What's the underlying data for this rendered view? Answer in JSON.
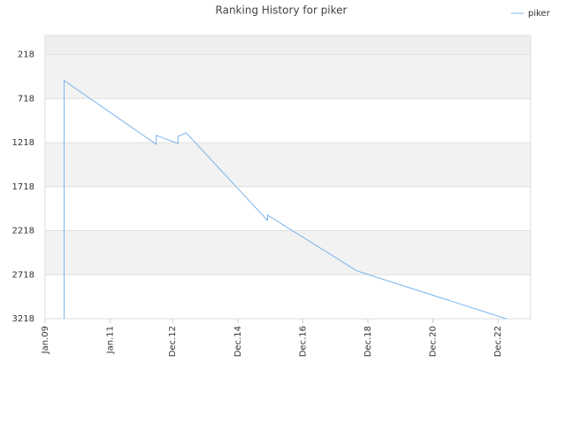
{
  "chart_data": {
    "type": "line",
    "title": "Ranking History for piker",
    "x": [
      "2009-08",
      "2009-08",
      "2012-06",
      "2012-06",
      "2013-02",
      "2013-02",
      "2013-05",
      "2015-11",
      "2015-11",
      "2018-08",
      "2023-03"
    ],
    "series": [
      {
        "name": "piker",
        "color": "#7cb5ec",
        "values": [
          3218,
          513,
          1237,
          1136,
          1227,
          1146,
          1106,
          2102,
          2041,
          2675,
          3218
        ]
      }
    ],
    "xlim": [
      "2009-01",
      "2023-12"
    ],
    "xticks": [
      {
        "value": "2009-01",
        "label": "Jan.09"
      },
      {
        "value": "2011-01",
        "label": "Jan.11"
      },
      {
        "value": "2012-12",
        "label": "Dec.12"
      },
      {
        "value": "2014-12",
        "label": "Dec.14"
      },
      {
        "value": "2016-12",
        "label": "Dec.16"
      },
      {
        "value": "2018-12",
        "label": "Dec.18"
      },
      {
        "value": "2020-12",
        "label": "Dec.20"
      },
      {
        "value": "2022-12",
        "label": "Dec.22"
      }
    ],
    "ylim": [
      3218,
      0
    ],
    "yticks": [
      218,
      718,
      1218,
      1718,
      2218,
      2718,
      3218
    ],
    "legend": "top-right"
  }
}
